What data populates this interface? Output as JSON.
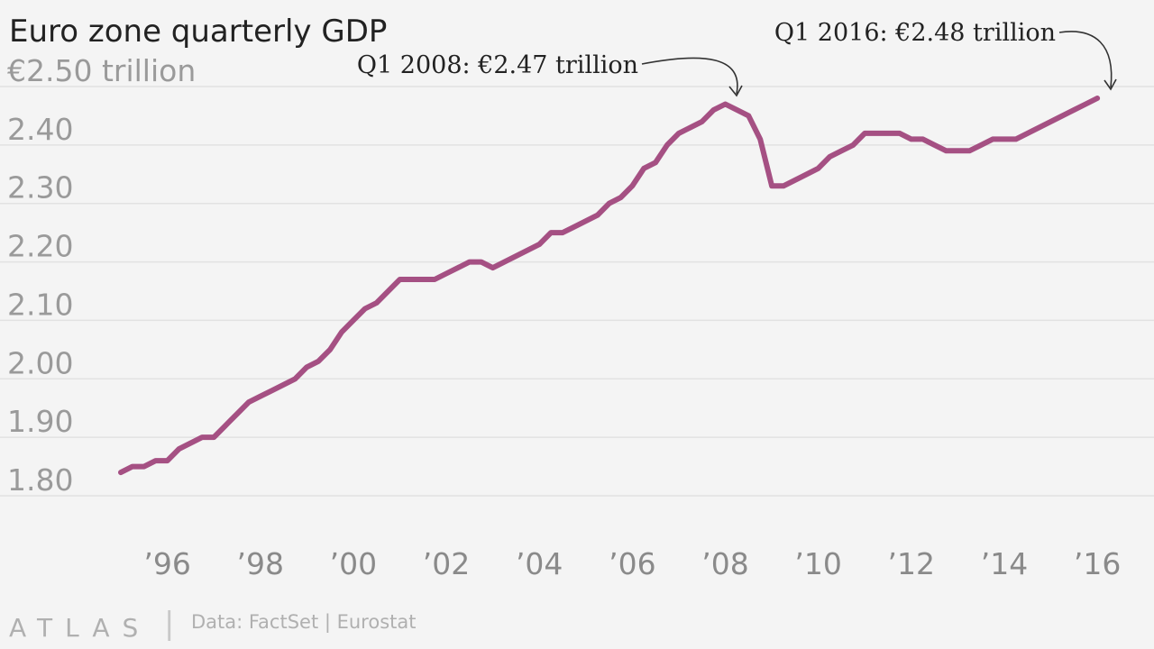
{
  "chart_data": {
    "type": "line",
    "title": "Euro zone quarterly GDP",
    "ylim": [
      1.8,
      2.5
    ],
    "yticks": [
      1.8,
      1.9,
      2.0,
      2.1,
      2.2,
      2.3,
      2.4,
      2.5
    ],
    "ytick_labels": [
      "1.80",
      "1.90",
      "2.00",
      "2.10",
      "2.20",
      "2.30",
      "2.40",
      "€2.50 trillion"
    ],
    "xlim": [
      1995.0,
      2016.25
    ],
    "xticks": [
      1996,
      1998,
      2000,
      2002,
      2004,
      2006,
      2008,
      2010,
      2012,
      2014,
      2016
    ],
    "xtick_labels": [
      "’96",
      "’98",
      "’00",
      "’02",
      "’04",
      "’06",
      "’08",
      "’10",
      "’12",
      "’14",
      "’16"
    ],
    "grid": true,
    "color": "#a55083",
    "x": [
      1995.0,
      1995.25,
      1995.5,
      1995.75,
      1996.0,
      1996.25,
      1996.5,
      1996.75,
      1997.0,
      1997.25,
      1997.5,
      1997.75,
      1998.0,
      1998.25,
      1998.5,
      1998.75,
      1999.0,
      1999.25,
      1999.5,
      1999.75,
      2000.0,
      2000.25,
      2000.5,
      2000.75,
      2001.0,
      2001.25,
      2001.5,
      2001.75,
      2002.0,
      2002.25,
      2002.5,
      2002.75,
      2003.0,
      2003.25,
      2003.5,
      2003.75,
      2004.0,
      2004.25,
      2004.5,
      2004.75,
      2005.0,
      2005.25,
      2005.5,
      2005.75,
      2006.0,
      2006.25,
      2006.5,
      2006.75,
      2007.0,
      2007.25,
      2007.5,
      2007.75,
      2008.0,
      2008.25,
      2008.5,
      2008.75,
      2009.0,
      2009.25,
      2009.5,
      2009.75,
      2010.0,
      2010.25,
      2010.5,
      2010.75,
      2011.0,
      2011.25,
      2011.5,
      2011.75,
      2012.0,
      2012.25,
      2012.5,
      2012.75,
      2013.0,
      2013.25,
      2013.5,
      2013.75,
      2014.0,
      2014.25,
      2014.5,
      2014.75,
      2015.0,
      2015.25,
      2015.5,
      2015.75,
      2016.0
    ],
    "values": [
      1.84,
      1.85,
      1.85,
      1.86,
      1.86,
      1.88,
      1.89,
      1.9,
      1.9,
      1.92,
      1.94,
      1.96,
      1.97,
      1.98,
      1.99,
      2.0,
      2.02,
      2.03,
      2.05,
      2.08,
      2.1,
      2.12,
      2.13,
      2.15,
      2.17,
      2.17,
      2.17,
      2.17,
      2.18,
      2.19,
      2.2,
      2.2,
      2.19,
      2.2,
      2.21,
      2.22,
      2.23,
      2.25,
      2.25,
      2.26,
      2.27,
      2.28,
      2.3,
      2.31,
      2.33,
      2.36,
      2.37,
      2.4,
      2.42,
      2.43,
      2.44,
      2.46,
      2.47,
      2.46,
      2.45,
      2.41,
      2.33,
      2.33,
      2.34,
      2.35,
      2.36,
      2.38,
      2.39,
      2.4,
      2.42,
      2.42,
      2.42,
      2.42,
      2.41,
      2.41,
      2.4,
      2.39,
      2.39,
      2.39,
      2.4,
      2.41,
      2.41,
      2.41,
      2.42,
      2.43,
      2.44,
      2.45,
      2.46,
      2.47,
      2.48
    ],
    "annotations": [
      {
        "text": "Q1 2008: €2.47 trillion",
        "x": 2008.0,
        "y": 2.47
      },
      {
        "text": "Q1 2016: €2.48 trillion",
        "x": 2016.0,
        "y": 2.48
      }
    ]
  },
  "footer": {
    "brand": "ATLAS",
    "divider": "|",
    "source": "Data: FactSet | Eurostat"
  }
}
